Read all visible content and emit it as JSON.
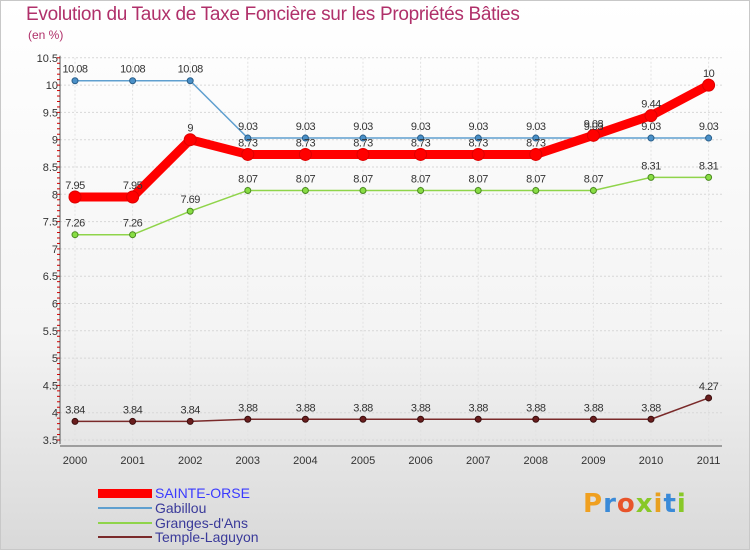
{
  "chart_data": {
    "type": "line",
    "title": "Evolution du Taux de Taxe Foncière sur les Propriétés Bâties",
    "ylabel": "(en %)",
    "xlabel": "",
    "ylim": [
      3.5,
      10.5
    ],
    "yticks": [
      "3.5",
      "4",
      "4.5",
      "5",
      "5.5",
      "6",
      "6.5",
      "7",
      "7.5",
      "8",
      "8.5",
      "9",
      "9.5",
      "10",
      "10.5"
    ],
    "categories": [
      "2000",
      "2001",
      "2002",
      "2003",
      "2004",
      "2005",
      "2006",
      "2007",
      "2008",
      "2009",
      "2010",
      "2011"
    ],
    "series": [
      {
        "name": "SAINTE-ORSE",
        "color": "#ff0000",
        "values": [
          7.95,
          7.95,
          9,
          8.73,
          8.73,
          8.73,
          8.73,
          8.73,
          8.73,
          9.08,
          9.44,
          10
        ],
        "labels": [
          "7.95",
          "7.95",
          "9",
          "8.73",
          "8.73",
          "8.73",
          "8.73",
          "8.73",
          "8.73",
          "9.08",
          "9.44",
          "10"
        ]
      },
      {
        "name": "Gabillou",
        "color": "#5f9fcf",
        "values": [
          10.08,
          10.08,
          10.08,
          9.03,
          9.03,
          9.03,
          9.03,
          9.03,
          9.03,
          9.03,
          9.03,
          9.03
        ],
        "labels": [
          "10.08",
          "10.08",
          "10.08",
          "9.03",
          "9.03",
          "9.03",
          "9.03",
          "9.03",
          "9.03",
          "9.03",
          "9.03",
          "9.03"
        ]
      },
      {
        "name": "Granges-d'Ans",
        "color": "#8fd44a",
        "values": [
          7.26,
          7.26,
          7.69,
          8.07,
          8.07,
          8.07,
          8.07,
          8.07,
          8.07,
          8.07,
          8.31,
          8.31
        ],
        "labels": [
          "7.26",
          "7.26",
          "7.69",
          "8.07",
          "8.07",
          "8.07",
          "8.07",
          "8.07",
          "8.07",
          "8.07",
          "8.31",
          "8.31"
        ]
      },
      {
        "name": "Temple-Laguyon",
        "color": "#7a2a2a",
        "values": [
          3.84,
          3.84,
          3.84,
          3.88,
          3.88,
          3.88,
          3.88,
          3.88,
          3.88,
          3.88,
          3.88,
          4.27
        ],
        "labels": [
          "3.84",
          "3.84",
          "3.84",
          "3.88",
          "3.88",
          "3.88",
          "3.88",
          "3.88",
          "3.88",
          "3.88",
          "3.88",
          "4.27"
        ]
      }
    ]
  },
  "logo": {
    "text": "Proxiti"
  }
}
